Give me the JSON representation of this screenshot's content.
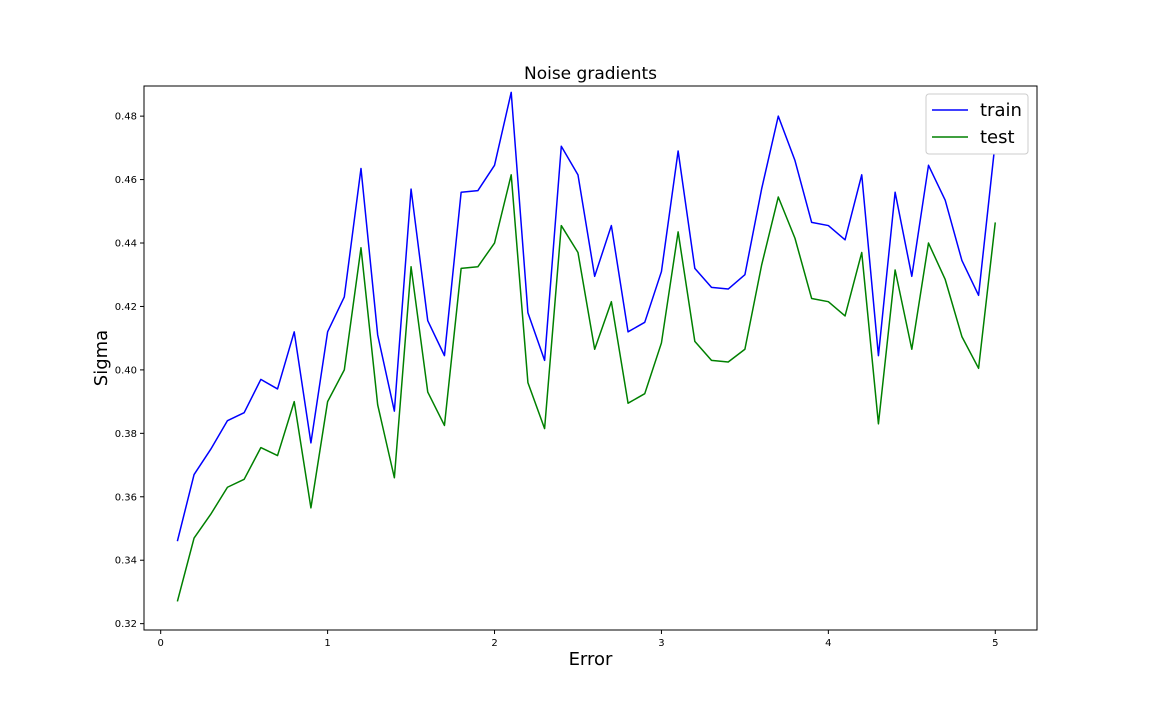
{
  "chart_data": {
    "type": "line",
    "title": "Noise gradients",
    "xlabel": "Error",
    "ylabel": "Sigma",
    "xlim": [
      -0.1,
      5.25
    ],
    "ylim": [
      0.318,
      0.4895
    ],
    "xticks": [
      0,
      1,
      2,
      3,
      4,
      5
    ],
    "xtick_labels": [
      "0",
      "1",
      "2",
      "3",
      "4",
      "5"
    ],
    "yticks": [
      0.32,
      0.34,
      0.36,
      0.38,
      0.4,
      0.42,
      0.44,
      0.46,
      0.48
    ],
    "ytick_labels": [
      "0.32",
      "0.34",
      "0.36",
      "0.38",
      "0.40",
      "0.42",
      "0.44",
      "0.46",
      "0.48"
    ],
    "grid": false,
    "legend_position": "top-right",
    "x": [
      0.1,
      0.2,
      0.3,
      0.4,
      0.5,
      0.6,
      0.7,
      0.8,
      0.9,
      1.0,
      1.1,
      1.2,
      1.3,
      1.4,
      1.5,
      1.6,
      1.7,
      1.8,
      1.9,
      2.0,
      2.1,
      2.2,
      2.3,
      2.4,
      2.5,
      2.6,
      2.7,
      2.8,
      2.9,
      3.0,
      3.1,
      3.2,
      3.3,
      3.4,
      3.5,
      3.6,
      3.7,
      3.8,
      3.9,
      4.0,
      4.1,
      4.2,
      4.3,
      4.4,
      4.5,
      4.6,
      4.7,
      4.8,
      4.9,
      5.0
    ],
    "series": [
      {
        "name": "train",
        "color": "#0000ff",
        "values": [
          0.346,
          0.367,
          0.375,
          0.384,
          0.3865,
          0.397,
          0.394,
          0.412,
          0.377,
          0.412,
          0.423,
          0.4635,
          0.411,
          0.387,
          0.457,
          0.4155,
          0.4045,
          0.456,
          0.4565,
          0.4645,
          0.4875,
          0.418,
          0.403,
          0.4705,
          0.4615,
          0.4295,
          0.4455,
          0.412,
          0.415,
          0.431,
          0.469,
          0.432,
          0.426,
          0.4255,
          0.43,
          0.457,
          0.48,
          0.466,
          0.4465,
          0.4455,
          0.441,
          0.4615,
          0.4045,
          0.456,
          0.4295,
          0.4645,
          0.4535,
          0.4345,
          0.4235,
          0.472
        ]
      },
      {
        "name": "test",
        "color": "#008000",
        "values": [
          0.327,
          0.347,
          0.3545,
          0.363,
          0.3655,
          0.3755,
          0.373,
          0.39,
          0.3565,
          0.39,
          0.4,
          0.4385,
          0.389,
          0.366,
          0.4325,
          0.393,
          0.3825,
          0.432,
          0.4325,
          0.44,
          0.4615,
          0.396,
          0.3815,
          0.4455,
          0.437,
          0.4065,
          0.4215,
          0.3895,
          0.3925,
          0.4085,
          0.4435,
          0.409,
          0.403,
          0.4025,
          0.4065,
          0.433,
          0.4545,
          0.4415,
          0.4225,
          0.4215,
          0.417,
          0.437,
          0.383,
          0.4315,
          0.4065,
          0.44,
          0.4285,
          0.4105,
          0.4005,
          0.4465
        ]
      }
    ]
  }
}
